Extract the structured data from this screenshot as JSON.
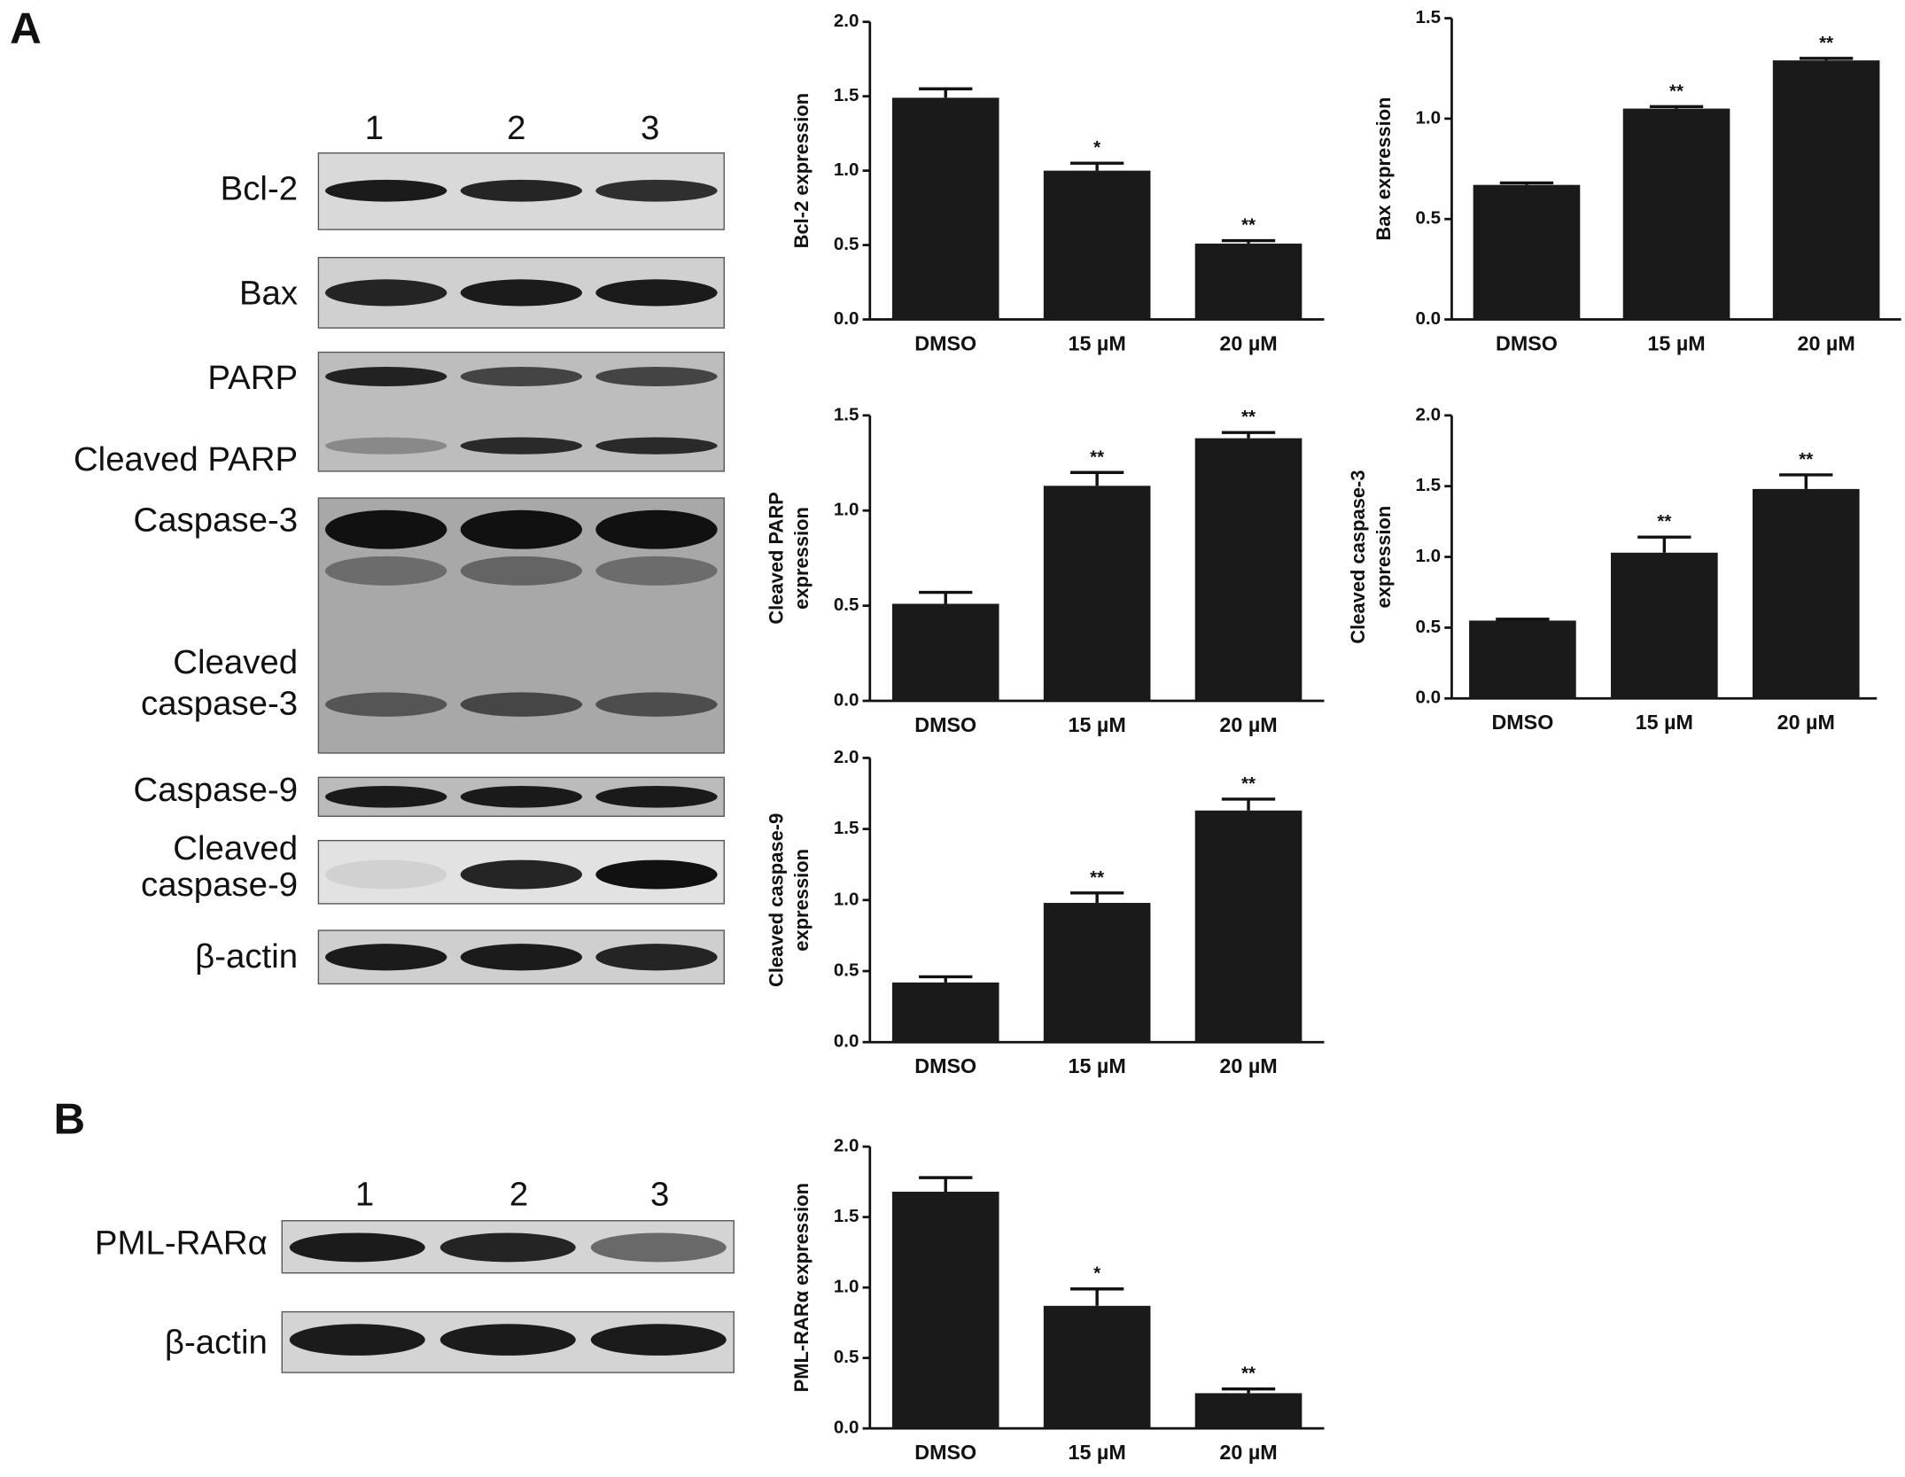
{
  "panel_labels": [
    "A",
    "B"
  ],
  "blot_a": {
    "lanes": [
      "1",
      "2",
      "3"
    ],
    "labels": [
      "Bcl-2",
      "Bax",
      "PARP",
      "Cleaved PARP",
      "Caspase-3",
      "Cleaved",
      "caspase-3",
      "Caspase-9",
      "Cleaved",
      "caspase-9",
      "β-actin"
    ]
  },
  "blot_b": {
    "lanes": [
      "1",
      "2",
      "3"
    ],
    "labels": [
      "PML-RARα",
      "β-actin"
    ]
  },
  "chart_data": [
    {
      "type": "bar",
      "ylabel": [
        "Bcl-2 expression"
      ],
      "categories": [
        "DMSO",
        "15 µM",
        "20 µM"
      ],
      "color": "#1a1a1a",
      "values": [
        1.49,
        1.0,
        0.51
      ],
      "errors": [
        0.06,
        0.05,
        0.02
      ],
      "significance": [
        null,
        "*",
        "**"
      ],
      "ylim": [
        0,
        2
      ],
      "yticks": [
        {
          "value": 0,
          "label": "0.0"
        },
        0.5,
        {
          "value": 1,
          "label": "1.0"
        },
        1.5,
        {
          "value": 2,
          "label": "2.0"
        }
      ]
    },
    {
      "type": "bar",
      "ylabel": [
        "Bax expression"
      ],
      "categories": [
        "DMSO",
        "15 µM",
        "20 µM"
      ],
      "color": "#1a1a1a",
      "values": [
        0.67,
        1.05,
        1.29
      ],
      "errors": [
        0.01,
        0.01,
        0.01
      ],
      "significance": [
        null,
        "**",
        "**"
      ],
      "ylim": [
        0,
        1.5
      ],
      "yticks": [
        {
          "value": 0,
          "label": "0.0"
        },
        0.5,
        {
          "value": 1,
          "label": "1.0"
        },
        1.5
      ]
    },
    {
      "type": "bar",
      "ylabel": [
        "Cleaved PARP",
        "expression"
      ],
      "categories": [
        "DMSO",
        "15 µM",
        "20 µM"
      ],
      "color": "#1a1a1a",
      "values": [
        0.51,
        1.13,
        1.38
      ],
      "errors": [
        0.06,
        0.07,
        0.03
      ],
      "significance": [
        null,
        "**",
        "**"
      ],
      "ylim": [
        0,
        1.5
      ],
      "yticks": [
        {
          "value": 0,
          "label": "0.0"
        },
        0.5,
        {
          "value": 1,
          "label": "1.0"
        },
        1.5
      ]
    },
    {
      "type": "bar",
      "ylabel": [
        "Cleaved caspase-3",
        "expression"
      ],
      "categories": [
        "DMSO",
        "15 µM",
        "20 µM"
      ],
      "color": "#1a1a1a",
      "values": [
        0.55,
        1.03,
        1.48
      ],
      "errors": [
        0.01,
        0.11,
        0.1
      ],
      "significance": [
        null,
        "**",
        "**"
      ],
      "ylim": [
        0,
        2
      ],
      "yticks": [
        {
          "value": 0,
          "label": "0.0"
        },
        0.5,
        {
          "value": 1,
          "label": "1.0"
        },
        1.5,
        {
          "value": 2,
          "label": "2.0"
        }
      ]
    },
    {
      "type": "bar",
      "ylabel": [
        "Cleaved caspase-9",
        "expression"
      ],
      "categories": [
        "DMSO",
        "15 µM",
        "20 µM"
      ],
      "color": "#1a1a1a",
      "values": [
        0.42,
        0.98,
        1.63
      ],
      "errors": [
        0.04,
        0.07,
        0.08
      ],
      "significance": [
        null,
        "**",
        "**"
      ],
      "ylim": [
        0,
        2
      ],
      "yticks": [
        {
          "value": 0,
          "label": "0.0"
        },
        0.5,
        {
          "value": 1,
          "label": "1.0"
        },
        1.5,
        {
          "value": 2,
          "label": "2.0"
        }
      ]
    },
    {
      "type": "bar",
      "ylabel": [
        "PML-RARα expression"
      ],
      "categories": [
        "DMSO",
        "15 µM",
        "20 µM"
      ],
      "color": "#1a1a1a",
      "values": [
        1.68,
        0.87,
        0.25
      ],
      "errors": [
        0.1,
        0.12,
        0.03
      ],
      "significance": [
        null,
        "*",
        "**"
      ],
      "ylim": [
        0,
        2
      ],
      "yticks": [
        {
          "value": 0,
          "label": "0.0"
        },
        0.5,
        {
          "value": 1,
          "label": "1.0"
        },
        1.5,
        {
          "value": 2,
          "label": "2.0"
        }
      ]
    }
  ]
}
